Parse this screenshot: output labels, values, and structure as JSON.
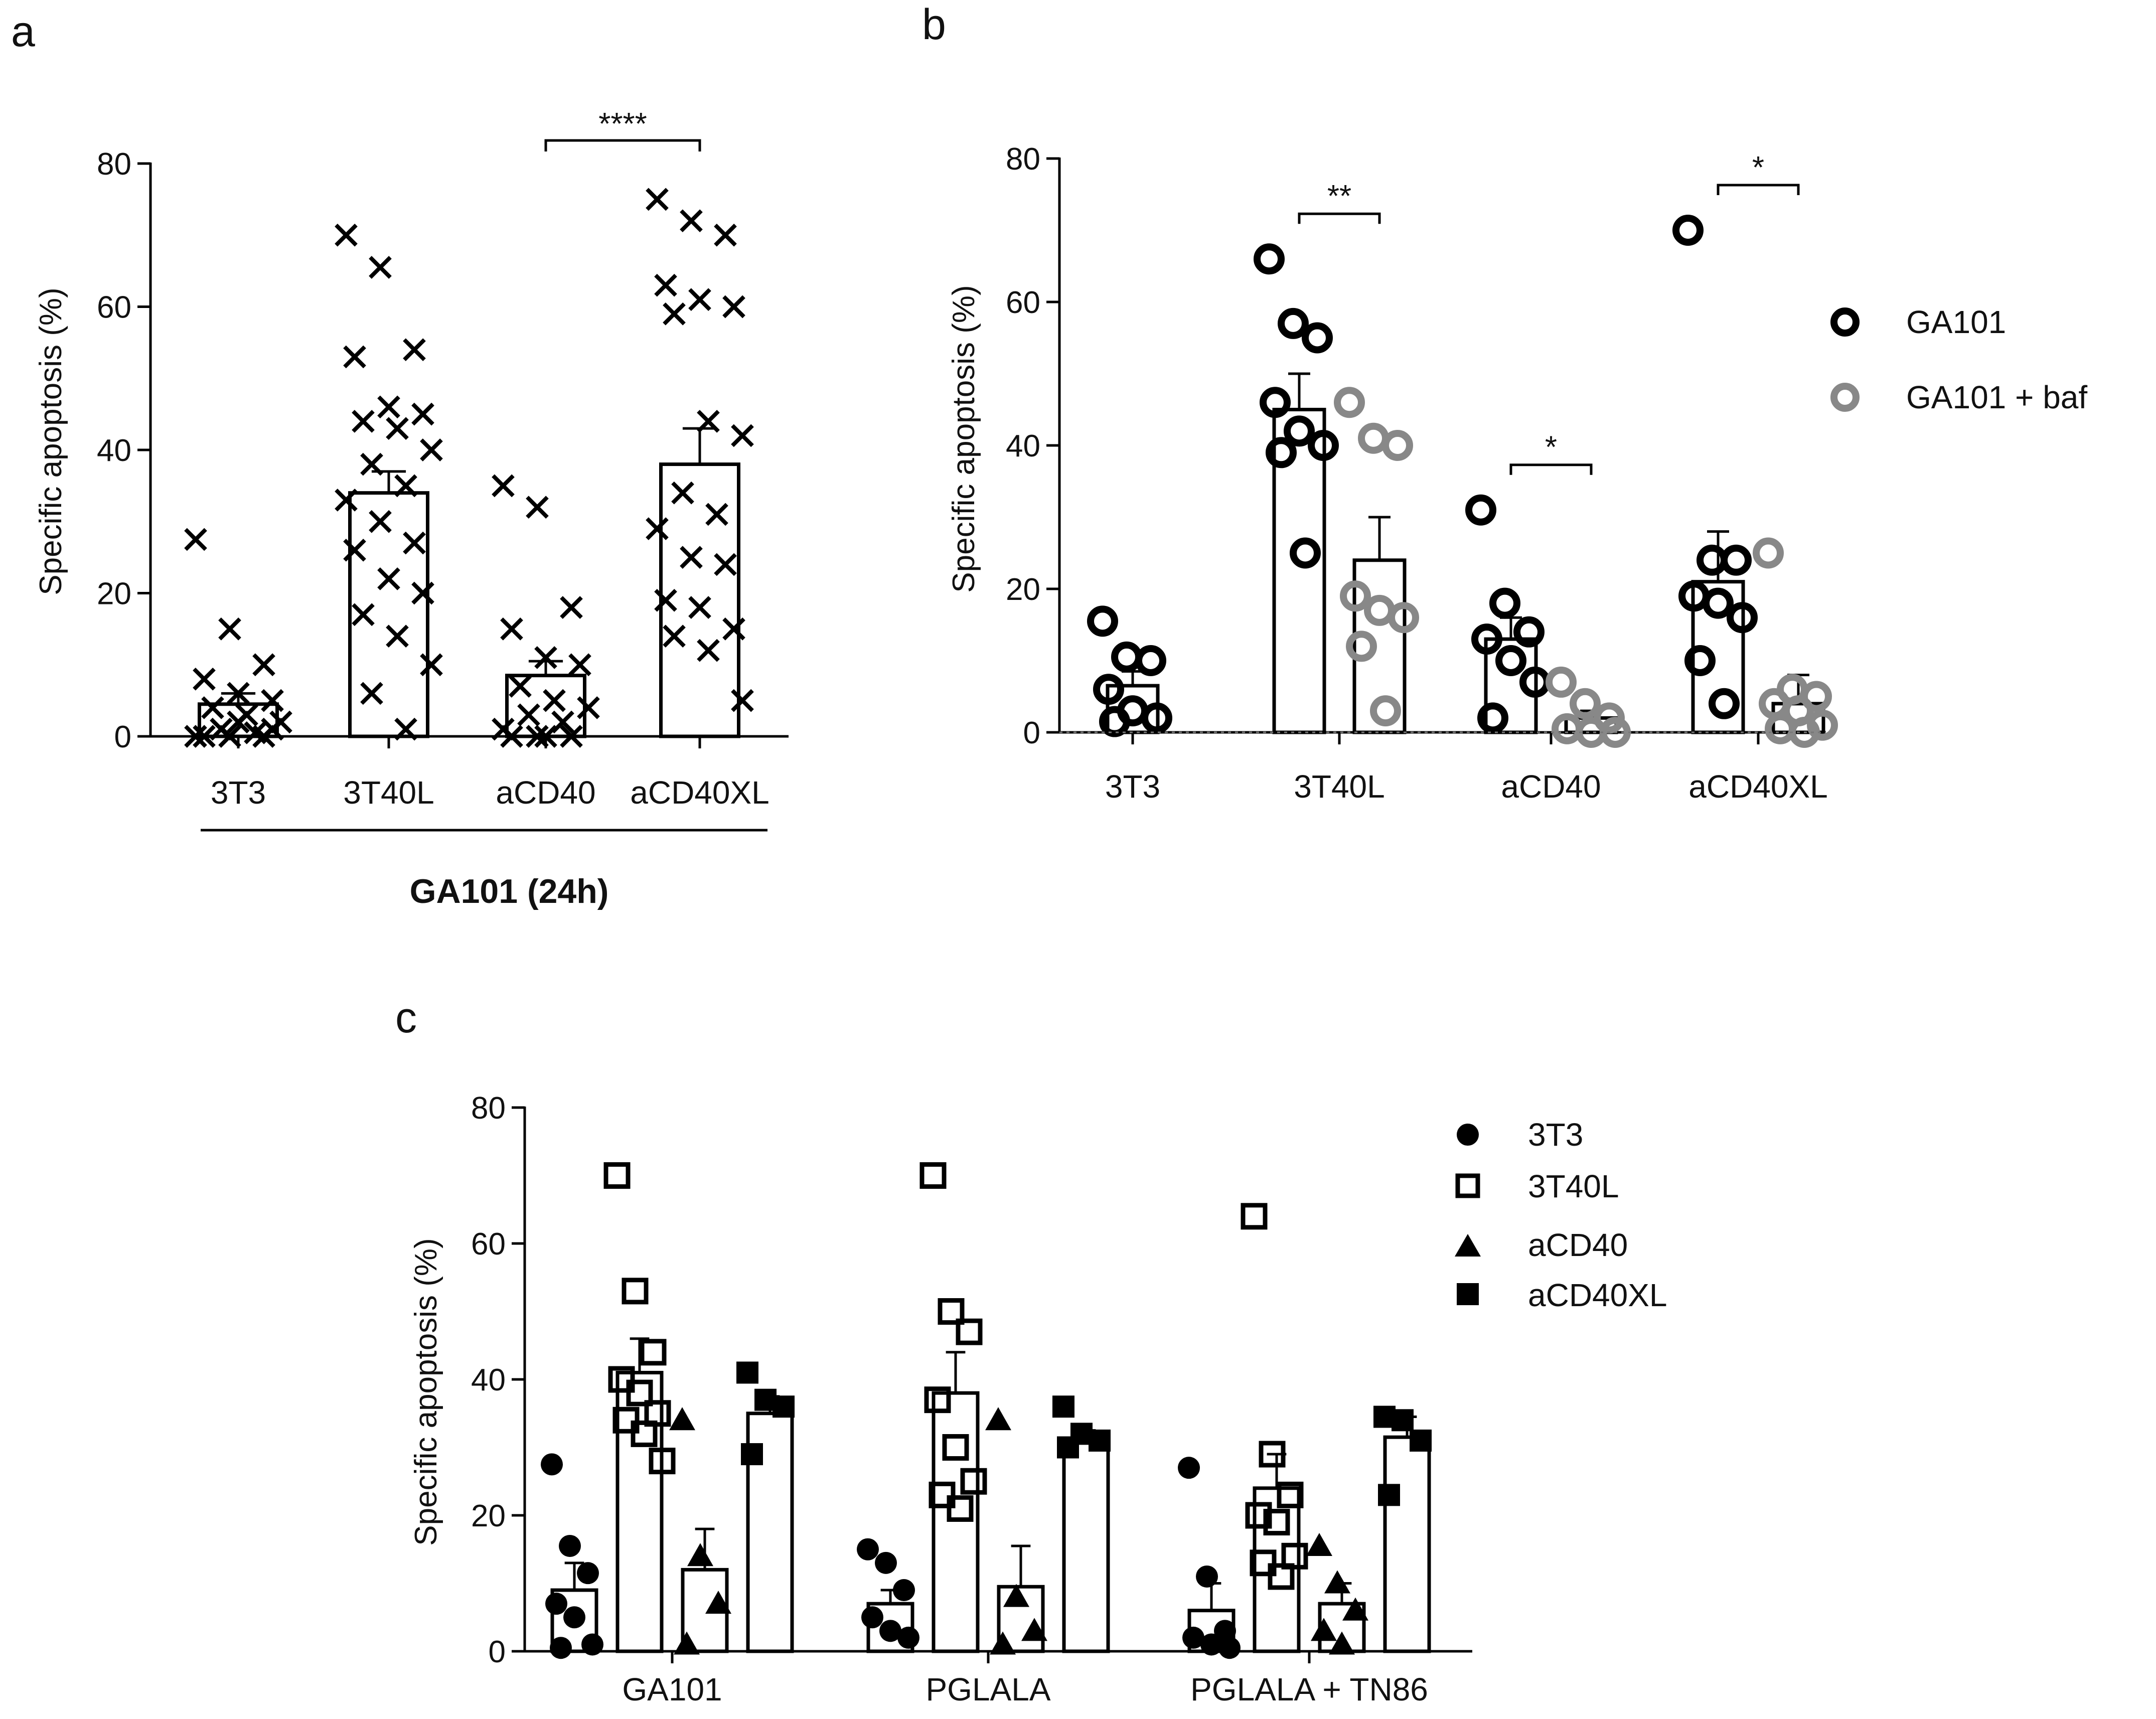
{
  "panels": {
    "a": {
      "label": "a",
      "chart_data": {
        "type": "bar",
        "ylabel": "Specific apoptosis (%)",
        "ylim": [
          0,
          80
        ],
        "yticks": [
          0,
          20,
          40,
          60,
          80
        ],
        "categories": [
          "3T3",
          "3T40L",
          "aCD40",
          "aCD40XL"
        ],
        "group_label": "GA101 (24h)",
        "bars": [
          {
            "mean": 4.5,
            "sem": 1.5,
            "points": [
              27.5,
              15,
              10,
              8,
              6,
              5,
              4,
              3,
              2,
              1,
              0.5,
              0,
              0,
              0,
              0,
              2,
              1
            ]
          },
          {
            "mean": 34,
            "sem": 3,
            "points": [
              70,
              65.5,
              54,
              53,
              46,
              45,
              44,
              43,
              40,
              38,
              35,
              33,
              30,
              27,
              26,
              22,
              20,
              17,
              14,
              10,
              6,
              1
            ]
          },
          {
            "mean": 8.5,
            "sem": 2,
            "points": [
              35,
              32,
              18,
              15,
              11,
              10,
              7,
              5,
              4,
              3,
              2,
              1,
              0,
              0,
              0,
              0
            ]
          },
          {
            "mean": 38,
            "sem": 5,
            "points": [
              75,
              72,
              70,
              63,
              61,
              60,
              59,
              44,
              42,
              34,
              31,
              29,
              25,
              24,
              19,
              18,
              15,
              14,
              12,
              5
            ]
          }
        ],
        "significance": [
          {
            "from": 2,
            "to": 3,
            "label": "****"
          }
        ]
      }
    },
    "b": {
      "label": "b",
      "chart_data": {
        "type": "bar",
        "ylabel": "Specific apoptosis (%)",
        "ylim": [
          0,
          80
        ],
        "yticks": [
          0,
          20,
          40,
          60,
          80
        ],
        "categories": [
          "3T3",
          "3T40L",
          "aCD40",
          "aCD40XL"
        ],
        "series": [
          {
            "name": "GA101",
            "color": "#000000",
            "bars": [
              {
                "mean": 6.5,
                "sem": 2,
                "points": [
                  15.5,
                  10.5,
                  10,
                  6,
                  3,
                  2,
                  1.5
                ]
              },
              {
                "mean": 45,
                "sem": 5,
                "points": [
                  66,
                  57,
                  55,
                  46,
                  42,
                  40,
                  39,
                  25
                ]
              },
              {
                "mean": 13,
                "sem": 3,
                "points": [
                  31,
                  18,
                  14,
                  13,
                  10,
                  7,
                  2
                ]
              },
              {
                "mean": 21,
                "sem": 7,
                "points": [
                  70,
                  24,
                  24,
                  19,
                  18,
                  16,
                  10,
                  4
                ]
              }
            ]
          },
          {
            "name": "GA101 + baf",
            "color": "#888888",
            "bars": [
              null,
              {
                "mean": 24,
                "sem": 6,
                "points": [
                  46,
                  41,
                  40,
                  19,
                  17,
                  16,
                  12,
                  3
                ]
              },
              {
                "mean": 2,
                "sem": 1,
                "points": [
                  7,
                  4,
                  2,
                  0.5,
                  0,
                  0
                ]
              },
              {
                "mean": 4,
                "sem": 4,
                "points": [
                  25,
                  6,
                  5,
                  4,
                  3,
                  1,
                  0.5,
                  0
                ]
              }
            ]
          }
        ],
        "significance": [
          {
            "category": 1,
            "label": "**"
          },
          {
            "category": 2,
            "label": "*"
          },
          {
            "category": 3,
            "label": "*"
          }
        ]
      }
    },
    "c": {
      "label": "c",
      "chart_data": {
        "type": "bar",
        "ylabel": "Specific apoptosis (%)",
        "ylim": [
          0,
          80
        ],
        "yticks": [
          0,
          20,
          40,
          60,
          80
        ],
        "categories": [
          "GA101",
          "PGLALA",
          "PGLALA + TN86"
        ],
        "series": [
          {
            "name": "3T3",
            "marker": "circle",
            "bars": [
              {
                "mean": 9,
                "sem": 4,
                "points": [
                  27.5,
                  15.5,
                  11.5,
                  7,
                  5,
                  1,
                  0.5
                ]
              },
              {
                "mean": 7,
                "sem": 2,
                "points": [
                  15,
                  13,
                  9,
                  5,
                  3,
                  2
                ]
              },
              {
                "mean": 6,
                "sem": 4,
                "points": [
                  27,
                  11,
                  3,
                  2,
                  1,
                  0.5
                ]
              }
            ]
          },
          {
            "name": "3T40L",
            "marker": "open-square",
            "bars": [
              {
                "mean": 41,
                "sem": 5,
                "points": [
                  70,
                  53,
                  44,
                  40,
                  38,
                  35,
                  34,
                  32,
                  28
                ]
              },
              {
                "mean": 38,
                "sem": 6,
                "points": [
                  70,
                  50,
                  47,
                  37,
                  30,
                  25,
                  23,
                  21
                ]
              },
              {
                "mean": 24,
                "sem": 5,
                "points": [
                  64,
                  29,
                  23,
                  20,
                  19,
                  14,
                  13,
                  11
                ]
              }
            ]
          },
          {
            "name": "aCD40",
            "marker": "triangle",
            "bars": [
              {
                "mean": 12,
                "sem": 6,
                "points": [
                  34,
                  14,
                  7,
                  1
                ]
              },
              {
                "mean": 9.5,
                "sem": 6,
                "points": [
                  34,
                  8,
                  3,
                  1
                ]
              },
              {
                "mean": 7,
                "sem": 3,
                "points": [
                  15.5,
                  10,
                  6,
                  3,
                  1
                ]
              }
            ]
          },
          {
            "name": "aCD40XL",
            "marker": "filled-square",
            "bars": [
              {
                "mean": 35,
                "sem": 2.5,
                "points": [
                  41,
                  37,
                  36,
                  29
                ]
              },
              {
                "mean": 31,
                "sem": 1.5,
                "points": [
                  36,
                  32,
                  31,
                  30
                ]
              },
              {
                "mean": 31.5,
                "sem": 3,
                "points": [
                  34.5,
                  34,
                  31,
                  23
                ]
              }
            ]
          }
        ]
      }
    }
  }
}
